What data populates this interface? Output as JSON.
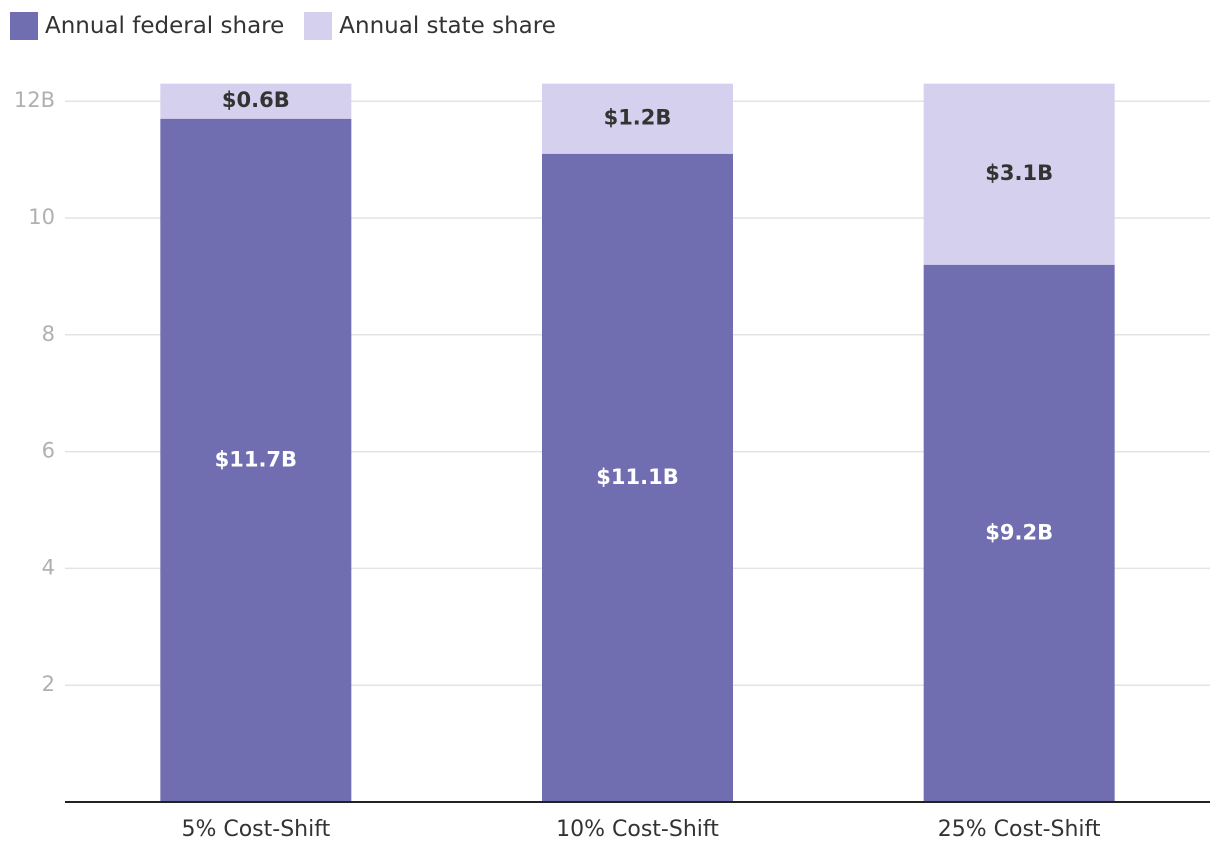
{
  "colors": {
    "federal": "#706eb1",
    "state": "#d4d0ee",
    "grid": "#e3e3e3",
    "axis": "#222222"
  },
  "legend": [
    {
      "label": "Annual federal share",
      "color": "#706eb1"
    },
    {
      "label": "Annual state share",
      "color": "#d4d0ee"
    }
  ],
  "chart_data": {
    "type": "bar",
    "stacked": true,
    "categories": [
      "5% Cost-Shift",
      "10% Cost-Shift",
      "25% Cost-Shift"
    ],
    "series": [
      {
        "name": "Annual federal share",
        "values": [
          11.7,
          11.1,
          9.2
        ],
        "labels": [
          "$11.7B",
          "$11.1B",
          "$9.2B"
        ]
      },
      {
        "name": "Annual state share",
        "values": [
          0.6,
          1.2,
          3.1
        ],
        "labels": [
          "$0.6B",
          "$1.2B",
          "$3.1B"
        ]
      }
    ],
    "y_ticks": [
      {
        "value": 2,
        "label": "2"
      },
      {
        "value": 4,
        "label": "4"
      },
      {
        "value": 6,
        "label": "6"
      },
      {
        "value": 8,
        "label": "8"
      },
      {
        "value": 10,
        "label": "10"
      },
      {
        "value": 12,
        "label": "12B"
      }
    ],
    "ylim": [
      0,
      12.3
    ],
    "grid": true,
    "legend_position": "top-left"
  }
}
